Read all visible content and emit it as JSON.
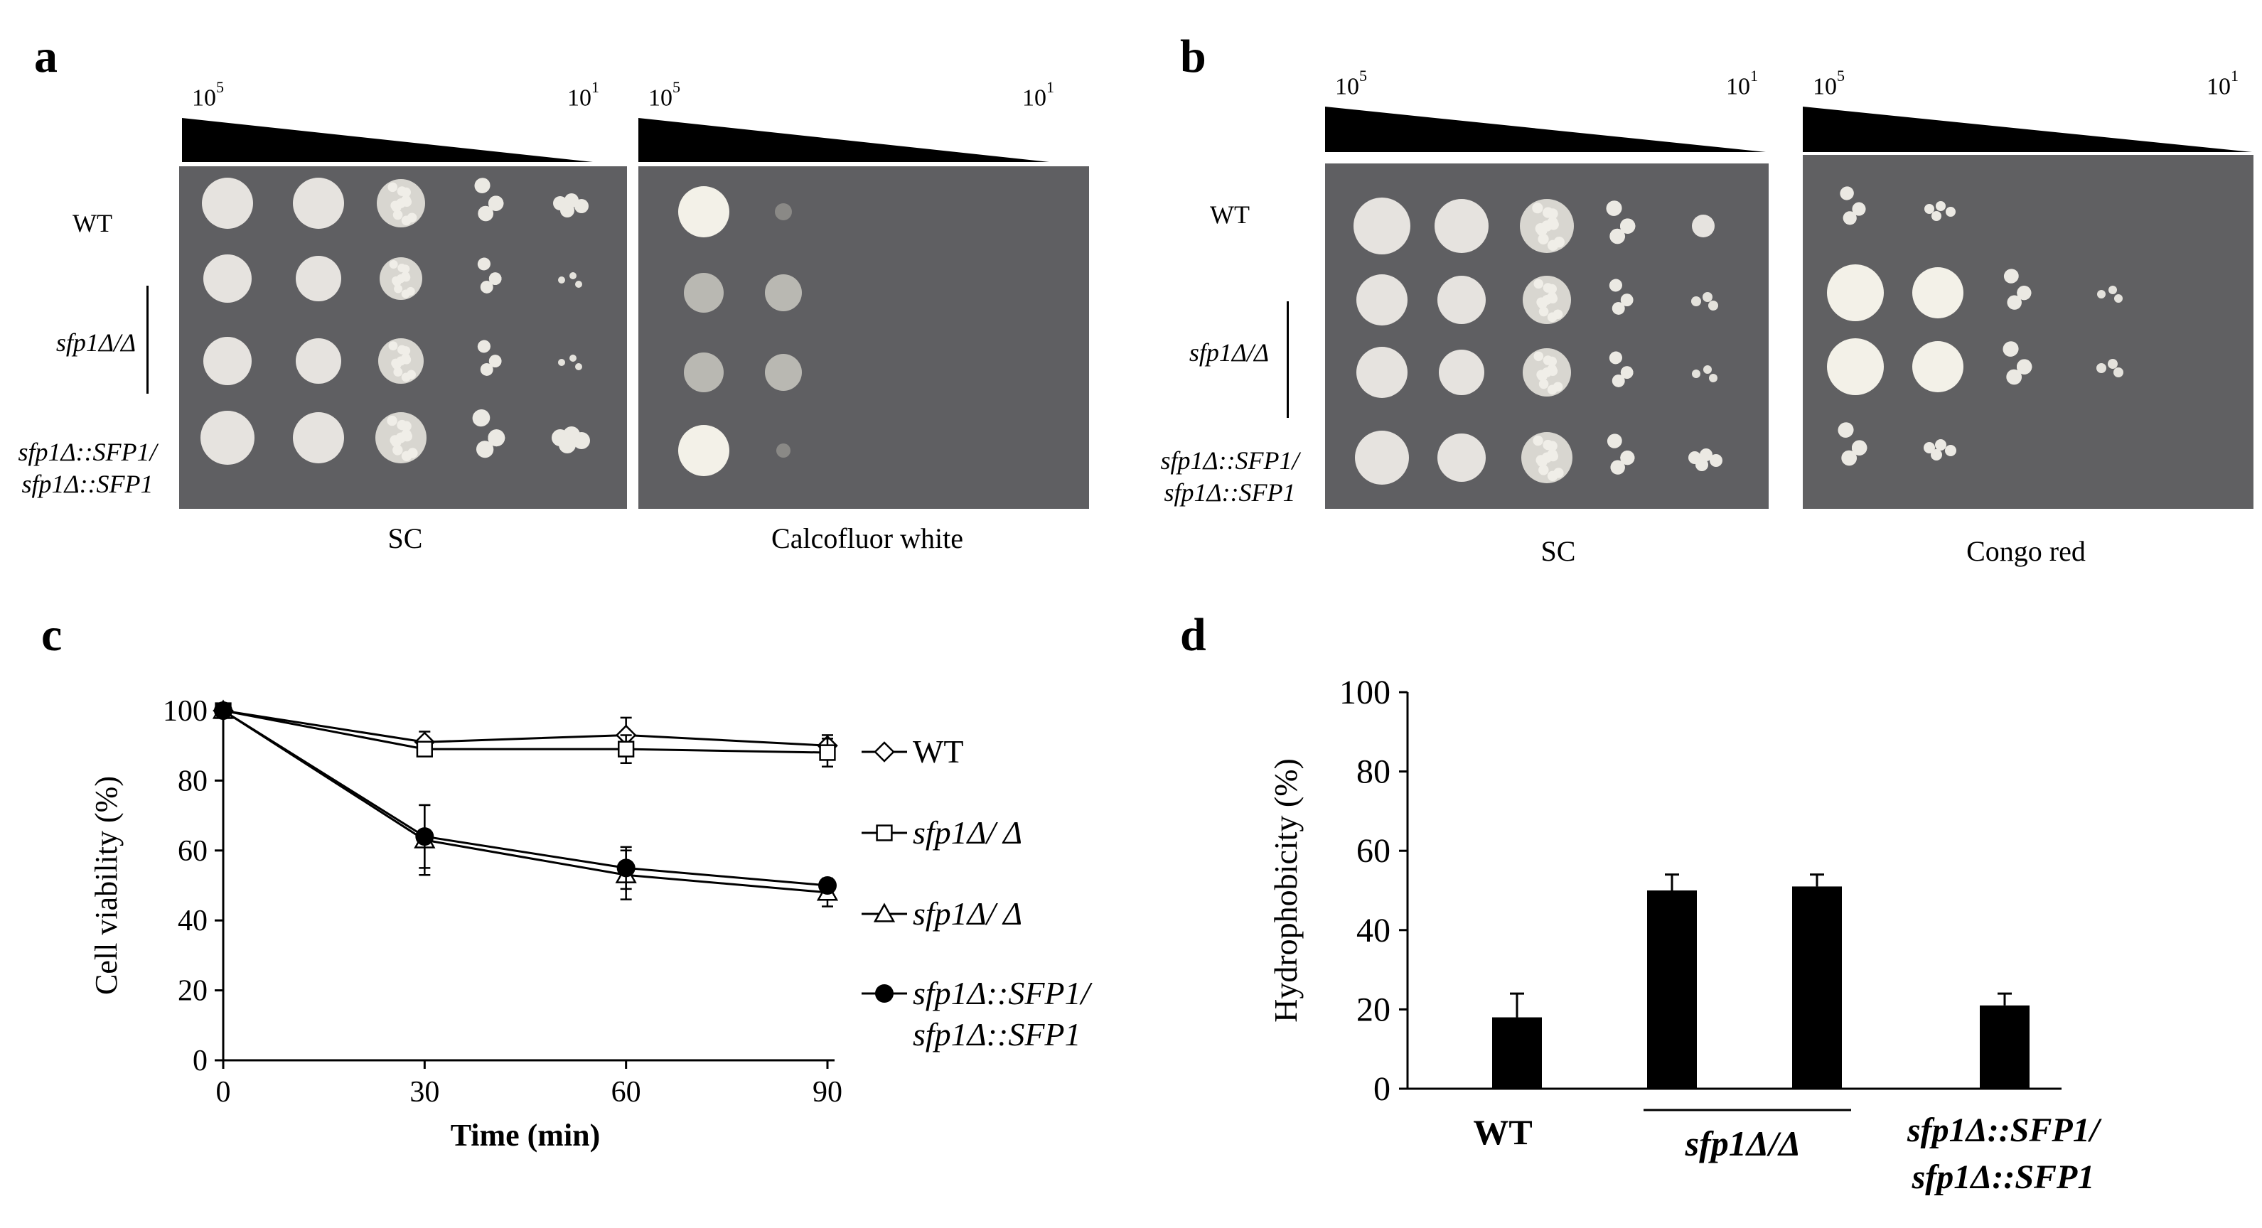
{
  "panels": {
    "a": {
      "letter": "a",
      "dilution_left": {
        "base": "10",
        "exp": "5"
      },
      "dilution_right": {
        "base": "10",
        "exp": "1"
      },
      "plates": [
        "SC",
        "Calcofluor white"
      ],
      "rows": [
        "WT",
        "sfp1Δ/Δ",
        "sfp1Δ::SFP1/\nsfp1Δ::SFP1"
      ]
    },
    "b": {
      "letter": "b",
      "dilution_left": {
        "base": "10",
        "exp": "5"
      },
      "dilution_right": {
        "base": "10",
        "exp": "1"
      },
      "plates": [
        "SC",
        "Congo red"
      ],
      "rows": [
        "WT",
        "sfp1Δ/Δ",
        "sfp1Δ::SFP1/\nsfp1Δ::SFP1"
      ]
    },
    "c": {
      "letter": "c"
    },
    "d": {
      "letter": "d"
    }
  },
  "chart_data": [
    {
      "type": "line",
      "panel": "c",
      "xlabel": "Time (min)",
      "ylabel": "Cell viability (%)",
      "x": [
        0,
        30,
        60,
        90
      ],
      "xticks": [
        "0",
        "30",
        "60",
        "90"
      ],
      "yticks": [
        "0",
        "20",
        "40",
        "60",
        "80",
        "100"
      ],
      "xlim": [
        0,
        90
      ],
      "ylim": [
        0,
        100
      ],
      "series": [
        {
          "name": "WT",
          "marker": "diamond-open",
          "values": [
            100,
            91,
            93,
            90
          ],
          "err": [
            0,
            3,
            5,
            3
          ]
        },
        {
          "name": "sfp1Δ/ Δ",
          "marker": "square-open",
          "values": [
            100,
            89,
            89,
            88
          ],
          "err": [
            0,
            2,
            4,
            4
          ]
        },
        {
          "name": "sfp1Δ/ Δ",
          "marker": "triangle-open",
          "values": [
            100,
            63,
            53,
            48
          ],
          "err": [
            0,
            10,
            7,
            4
          ]
        },
        {
          "name": "sfp1Δ::SFP1/\nsfp1Δ::SFP1",
          "marker": "circle-filled",
          "values": [
            100,
            64,
            55,
            50
          ],
          "err": [
            0,
            9,
            6,
            2
          ]
        }
      ]
    },
    {
      "type": "bar",
      "panel": "d",
      "ylabel": "Hydrophobicity (%)",
      "categories": [
        "WT",
        "sfp1Δ/Δ",
        "sfp1Δ/Δ",
        "sfp1Δ::SFP1/ sfp1Δ::SFP1"
      ],
      "group_labels": [
        "WT",
        "sfp1Δ/Δ",
        "sfp1Δ::SFP1/\nsfp1Δ::SFP1"
      ],
      "values": [
        18,
        50,
        51,
        21
      ],
      "err": [
        6,
        4,
        3,
        3
      ],
      "yticks": [
        "0",
        "20",
        "40",
        "60",
        "80",
        "100"
      ],
      "ylim": [
        0,
        100
      ],
      "significance": [
        {
          "from": 0,
          "to": 1,
          "label": "**"
        },
        {
          "from": 1,
          "to": 3,
          "label": "***"
        }
      ]
    }
  ]
}
